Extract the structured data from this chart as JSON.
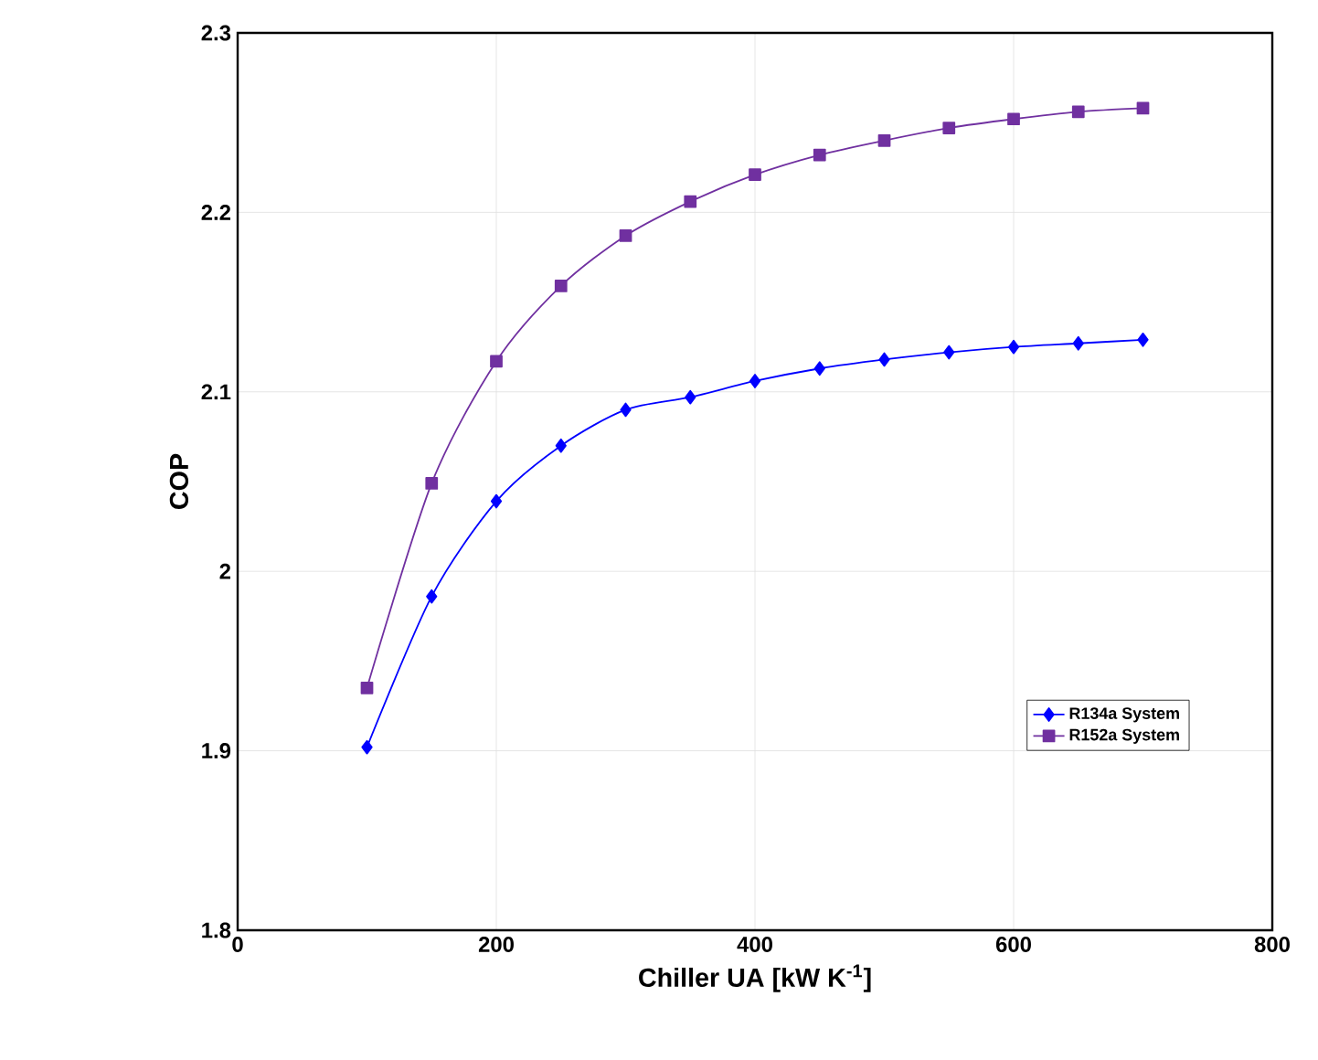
{
  "chart_data": {
    "type": "line",
    "xlabel": "Chiller UA [kW K$^{-1}$]",
    "ylabel": "COP",
    "x": [
      100,
      150,
      200,
      250,
      300,
      350,
      400,
      450,
      500,
      550,
      600,
      650,
      700
    ],
    "series": [
      {
        "name": "R134a System",
        "color": "#0000ff",
        "marker": "diamond",
        "values": [
          1.902,
          1.986,
          2.039,
          2.07,
          2.09,
          2.097,
          2.106,
          2.113,
          2.118,
          2.122,
          2.125,
          2.127,
          2.129
        ]
      },
      {
        "name": "R152a System",
        "color": "#7030a0",
        "marker": "square",
        "values": [
          1.935,
          2.049,
          2.117,
          2.159,
          2.187,
          2.206,
          2.221,
          2.232,
          2.24,
          2.247,
          2.252,
          2.256,
          2.258
        ]
      }
    ],
    "xlim": [
      0,
      800
    ],
    "xticks": [
      0,
      200,
      400,
      600,
      800
    ],
    "ylim": [
      1.8,
      2.3
    ],
    "yticks": [
      1.8,
      1.9,
      2,
      2.1,
      2.2,
      2.3
    ],
    "grid": true,
    "legend": "bottom right",
    "line_style": "solid"
  }
}
